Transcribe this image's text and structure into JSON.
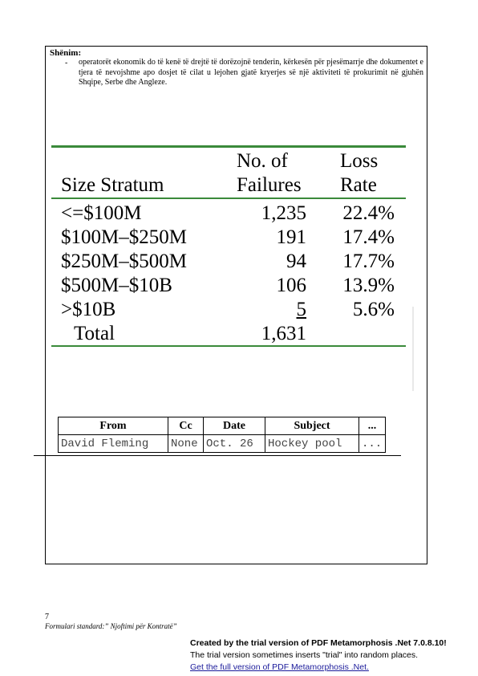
{
  "note": {
    "title": "Shënim:",
    "dash": "-",
    "text": "operatorët ekonomik do të kenë të drejtë të dorëzojnë tenderin, kërkesën për pjesëmarrje dhe dokumentet e tjera të nevojshme apo dosjet të cilat u lejohen gjatë kryerjes së një aktiviteti të prokurimit në gjuhën Shqipe, Serbe dhe Angleze."
  },
  "stratum_table": {
    "headers": {
      "col1": "Size Stratum",
      "col2_line1": "No. of",
      "col2_line2": "Failures",
      "col3_line1": "Loss",
      "col3_line2": "Rate"
    },
    "rows": [
      {
        "stratum": "<=$100M",
        "failures": "1,235",
        "loss": "22.4%"
      },
      {
        "stratum": "$100M–$250M",
        "failures": "191",
        "loss": "17.4%"
      },
      {
        "stratum": "$250M–$500M",
        "failures": "94",
        "loss": "17.7%"
      },
      {
        "stratum": "$500M–$10B",
        "failures": "106",
        "loss": "13.9%"
      },
      {
        "stratum": ">$10B",
        "failures": "5",
        "loss": "5.6%"
      }
    ],
    "total": {
      "label": "Total",
      "failures": "1,631"
    }
  },
  "mail_table": {
    "headers": [
      "From",
      "Cc",
      "Date",
      "Subject",
      "..."
    ],
    "row": [
      "David Fleming",
      "None",
      "Oct. 26",
      "Hockey pool",
      "..."
    ]
  },
  "footer": {
    "page_number": "7",
    "form_label": "Formulari standard:” Njoftimi për Kontratë”"
  },
  "trial_notice": {
    "line1": "Created by the trial version of PDF Metamorphosis .Net 7.0.8.10!",
    "line2": "The trial version sometimes inserts \"trial\" into random places.",
    "link": "Get the full version of PDF Metamorphosis .Net."
  }
}
